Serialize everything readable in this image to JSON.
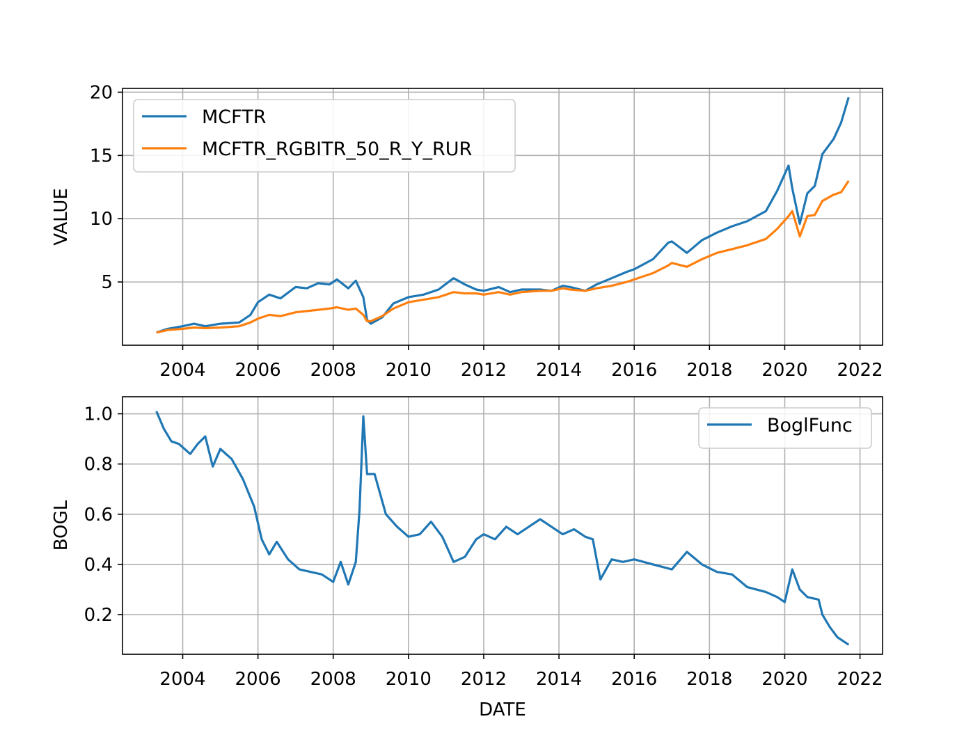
{
  "chart_data": [
    {
      "type": "line",
      "xlabel": "",
      "ylabel": "VALUE",
      "xlim": [
        2002.4,
        2022.6
      ],
      "ylim": [
        0.0,
        20.3
      ],
      "xticks": [
        "2004",
        "2006",
        "2008",
        "2010",
        "2012",
        "2014",
        "2016",
        "2018",
        "2020",
        "2022"
      ],
      "yticks": [
        "5",
        "10",
        "15",
        "20"
      ],
      "grid": true,
      "legend": "top-left",
      "series": [
        {
          "name": "MCFTR",
          "color": "#1f77b4",
          "x": [
            2003.3,
            2003.6,
            2004.0,
            2004.3,
            2004.6,
            2005.0,
            2005.5,
            2005.8,
            2006.0,
            2006.3,
            2006.6,
            2007.0,
            2007.3,
            2007.6,
            2007.9,
            2008.1,
            2008.4,
            2008.6,
            2008.8,
            2008.9,
            2009.0,
            2009.3,
            2009.6,
            2010.0,
            2010.4,
            2010.8,
            2011.2,
            2011.5,
            2011.8,
            2012.0,
            2012.4,
            2012.7,
            2013.0,
            2013.5,
            2013.8,
            2014.1,
            2014.3,
            2014.7,
            2015.0,
            2015.4,
            2015.8,
            2016.0,
            2016.5,
            2016.9,
            2017.0,
            2017.4,
            2017.8,
            2018.2,
            2018.6,
            2019.0,
            2019.5,
            2019.8,
            2020.1,
            2020.2,
            2020.4,
            2020.6,
            2020.8,
            2021.0,
            2021.3,
            2021.5,
            2021.7
          ],
          "y": [
            1.0,
            1.3,
            1.5,
            1.7,
            1.5,
            1.7,
            1.8,
            2.4,
            3.4,
            4.0,
            3.7,
            4.6,
            4.5,
            4.9,
            4.8,
            5.2,
            4.5,
            5.1,
            3.8,
            2.0,
            1.7,
            2.2,
            3.3,
            3.8,
            4.0,
            4.4,
            5.3,
            4.8,
            4.4,
            4.3,
            4.6,
            4.2,
            4.4,
            4.4,
            4.3,
            4.7,
            4.6,
            4.3,
            4.8,
            5.3,
            5.8,
            6.0,
            6.8,
            8.1,
            8.2,
            7.3,
            8.3,
            8.9,
            9.4,
            9.8,
            10.6,
            12.2,
            14.2,
            12.4,
            9.6,
            12.0,
            12.6,
            15.1,
            16.3,
            17.6,
            19.6
          ]
        },
        {
          "name": "MCFTR_RGBITR_50_R_Y_RUR",
          "color": "#ff7f0e",
          "x": [
            2003.3,
            2003.6,
            2004.0,
            2004.3,
            2004.6,
            2005.0,
            2005.5,
            2005.8,
            2006.0,
            2006.3,
            2006.6,
            2007.0,
            2007.3,
            2007.6,
            2007.9,
            2008.1,
            2008.4,
            2008.6,
            2008.8,
            2008.9,
            2009.0,
            2009.3,
            2009.6,
            2010.0,
            2010.4,
            2010.8,
            2011.2,
            2011.5,
            2011.8,
            2012.0,
            2012.4,
            2012.7,
            2013.0,
            2013.5,
            2013.8,
            2014.1,
            2014.3,
            2014.7,
            2015.0,
            2015.4,
            2015.8,
            2016.0,
            2016.5,
            2016.9,
            2017.0,
            2017.4,
            2017.8,
            2018.2,
            2018.6,
            2019.0,
            2019.5,
            2019.8,
            2020.1,
            2020.2,
            2020.4,
            2020.6,
            2020.8,
            2021.0,
            2021.3,
            2021.5,
            2021.7
          ],
          "y": [
            1.0,
            1.2,
            1.3,
            1.4,
            1.35,
            1.4,
            1.5,
            1.8,
            2.1,
            2.4,
            2.3,
            2.6,
            2.7,
            2.8,
            2.9,
            3.0,
            2.8,
            2.9,
            2.4,
            1.9,
            1.9,
            2.3,
            2.9,
            3.4,
            3.6,
            3.8,
            4.2,
            4.1,
            4.1,
            4.0,
            4.2,
            4.0,
            4.2,
            4.3,
            4.3,
            4.5,
            4.4,
            4.3,
            4.5,
            4.7,
            5.0,
            5.2,
            5.7,
            6.3,
            6.5,
            6.2,
            6.8,
            7.3,
            7.6,
            7.9,
            8.4,
            9.2,
            10.2,
            10.6,
            8.6,
            10.2,
            10.3,
            11.4,
            11.9,
            12.1,
            13.0
          ]
        }
      ]
    },
    {
      "type": "line",
      "xlabel": "DATE",
      "ylabel": "BOGL",
      "xlim": [
        2002.4,
        2022.6
      ],
      "ylim": [
        0.042,
        1.068
      ],
      "xticks": [
        "2004",
        "2006",
        "2008",
        "2010",
        "2012",
        "2014",
        "2016",
        "2018",
        "2020",
        "2022"
      ],
      "yticks": [
        "0.2",
        "0.4",
        "0.6",
        "0.8",
        "1.0"
      ],
      "grid": true,
      "legend": "top-right",
      "series": [
        {
          "name": "BoglFunc",
          "color": "#1f77b4",
          "x": [
            2003.3,
            2003.5,
            2003.7,
            2003.9,
            2004.2,
            2004.4,
            2004.6,
            2004.8,
            2005.0,
            2005.3,
            2005.6,
            2005.9,
            2006.1,
            2006.3,
            2006.5,
            2006.8,
            2007.1,
            2007.4,
            2007.7,
            2008.0,
            2008.2,
            2008.4,
            2008.6,
            2008.7,
            2008.8,
            2008.9,
            2009.1,
            2009.4,
            2009.7,
            2010.0,
            2010.3,
            2010.6,
            2010.9,
            2011.2,
            2011.5,
            2011.8,
            2012.0,
            2012.3,
            2012.6,
            2012.9,
            2013.2,
            2013.5,
            2013.8,
            2014.1,
            2014.4,
            2014.7,
            2014.9,
            2015.1,
            2015.4,
            2015.7,
            2016.0,
            2016.5,
            2017.0,
            2017.4,
            2017.8,
            2018.2,
            2018.6,
            2019.0,
            2019.5,
            2019.8,
            2020.0,
            2020.2,
            2020.4,
            2020.6,
            2020.9,
            2021.0,
            2021.2,
            2021.4,
            2021.7
          ],
          "y": [
            1.01,
            0.94,
            0.89,
            0.88,
            0.84,
            0.88,
            0.91,
            0.79,
            0.86,
            0.82,
            0.74,
            0.63,
            0.5,
            0.44,
            0.49,
            0.42,
            0.38,
            0.37,
            0.36,
            0.33,
            0.41,
            0.32,
            0.41,
            0.62,
            0.99,
            0.76,
            0.76,
            0.6,
            0.55,
            0.51,
            0.52,
            0.57,
            0.51,
            0.41,
            0.43,
            0.5,
            0.52,
            0.5,
            0.55,
            0.52,
            0.55,
            0.58,
            0.55,
            0.52,
            0.54,
            0.51,
            0.5,
            0.34,
            0.42,
            0.41,
            0.42,
            0.4,
            0.38,
            0.45,
            0.4,
            0.37,
            0.36,
            0.31,
            0.29,
            0.27,
            0.25,
            0.38,
            0.3,
            0.27,
            0.26,
            0.2,
            0.15,
            0.11,
            0.08
          ]
        }
      ]
    }
  ]
}
